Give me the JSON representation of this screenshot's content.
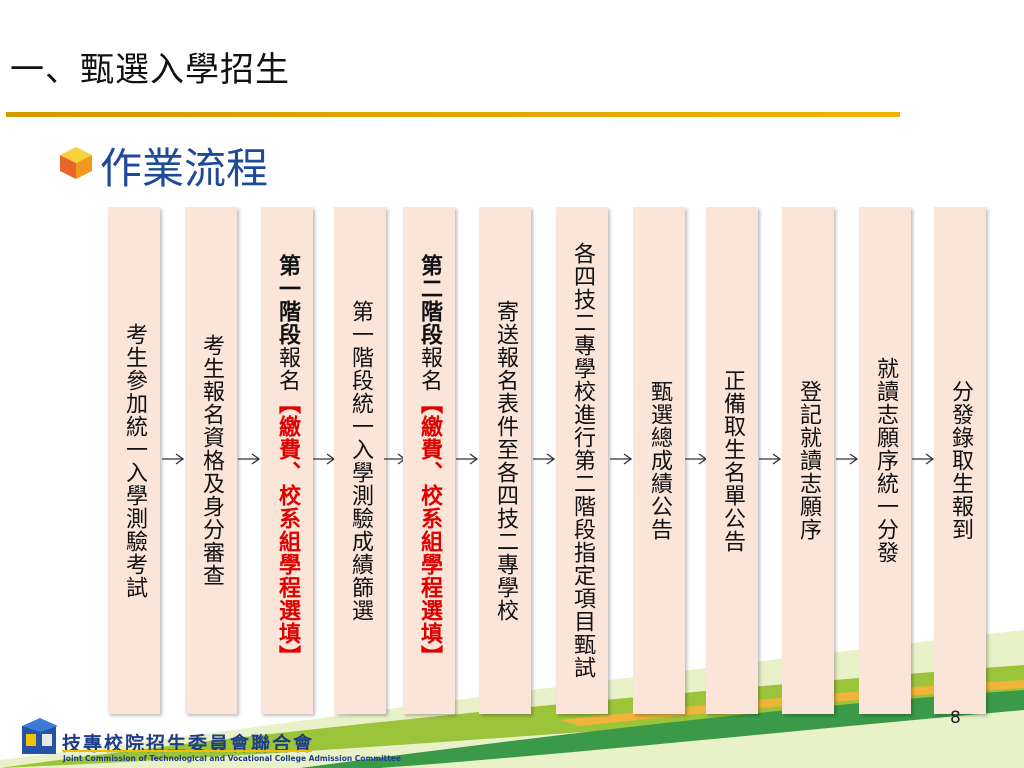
{
  "title": "一、甄選入學招生",
  "subtitle": "作業流程",
  "page_number": "8",
  "footer": {
    "org_zh": "技專校院招生委員會聯合會",
    "org_en": "Joint Commission of Technological and Vocational College Admission Committee"
  },
  "steps": [
    {
      "plain": "考生參加統一入學測驗考試"
    },
    {
      "plain": "考生報名資格及身分審查"
    },
    {
      "bold": "第一階段",
      "plain": "報名",
      "red": "【繳費、校系組學程選填】"
    },
    {
      "plain": "第一階段統一入學測驗成績篩選"
    },
    {
      "bold": "第二階段",
      "plain": "報名",
      "red": "【繳費、校系組學程選填】"
    },
    {
      "plain": "寄送報名表件至各四技二專學校"
    },
    {
      "plain": "各四技二專學校進行第二階段指定項目甄試"
    },
    {
      "plain": "甄選總成績公告"
    },
    {
      "plain": "正備取生名單公告"
    },
    {
      "plain": "登記就讀志願序"
    },
    {
      "plain": "就讀志願序統一分發"
    },
    {
      "plain": "分發錄取生報到"
    }
  ],
  "icons": {
    "bullet": "cube-bullet-icon",
    "arrow": "right-arrow-icon",
    "logo": "book-logo-icon"
  },
  "colors": {
    "column_bg": "#fbe4d8",
    "title_rule": "#f0b400",
    "subtitle": "#1f4a9a",
    "emphasis_red": "#e00000"
  }
}
